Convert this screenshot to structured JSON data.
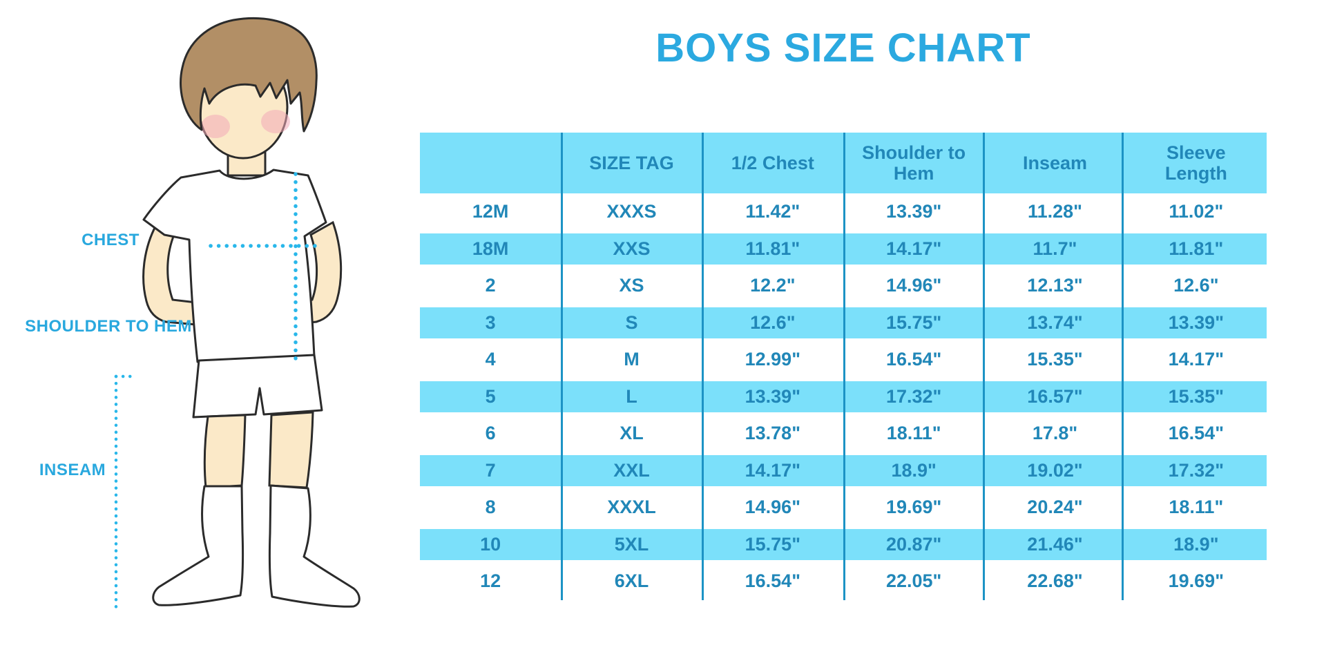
{
  "title": "BOYS SIZE CHART",
  "figure": {
    "chest_label": "CHEST",
    "shoulder_to_hem_label": "SHOULDER TO HEM",
    "inseam_label": "INSEAM"
  },
  "colors": {
    "title_blue": "#2BA9E0",
    "table_stripe_blue": "#7BE0FA",
    "table_text_blue": "#2187B8",
    "header_text_blue": "#1E7EAA",
    "separator_blue": "#1C93C5",
    "dotted_line_blue": "#29B7EA",
    "skin": "#FBE9C8",
    "hair_brown": "#B28F66",
    "blush_pink": "#F2A9B8"
  },
  "chart_data": {
    "type": "table",
    "title": "BOYS SIZE CHART",
    "columns": [
      "",
      "SIZE TAG",
      "1/2 Chest",
      "Shoulder to Hem",
      "Inseam",
      "Sleeve Length"
    ],
    "rows": [
      [
        "12M",
        "XXXS",
        "11.42\"",
        "13.39\"",
        "11.28\"",
        "11.02\""
      ],
      [
        "18M",
        "XXS",
        "11.81\"",
        "14.17\"",
        "11.7\"",
        "11.81\""
      ],
      [
        "2",
        "XS",
        "12.2\"",
        "14.96\"",
        "12.13\"",
        "12.6\""
      ],
      [
        "3",
        "S",
        "12.6\"",
        "15.75\"",
        "13.74\"",
        "13.39\""
      ],
      [
        "4",
        "M",
        "12.99\"",
        "16.54\"",
        "15.35\"",
        "14.17\""
      ],
      [
        "5",
        "L",
        "13.39\"",
        "17.32\"",
        "16.57\"",
        "15.35\""
      ],
      [
        "6",
        "XL",
        "13.78\"",
        "18.11\"",
        "17.8\"",
        "16.54\""
      ],
      [
        "7",
        "XXL",
        "14.17\"",
        "18.9\"",
        "19.02\"",
        "17.32\""
      ],
      [
        "8",
        "XXXL",
        "14.96\"",
        "19.69\"",
        "20.24\"",
        "18.11\""
      ],
      [
        "10",
        "5XL",
        "15.75\"",
        "20.87\"",
        "21.46\"",
        "18.9\""
      ],
      [
        "12",
        "6XL",
        "16.54\"",
        "22.05\"",
        "22.68\"",
        "19.69\""
      ]
    ],
    "layout": {
      "stripe_pattern": "alternating white / light-blue rows starting white",
      "units": "inches"
    }
  }
}
